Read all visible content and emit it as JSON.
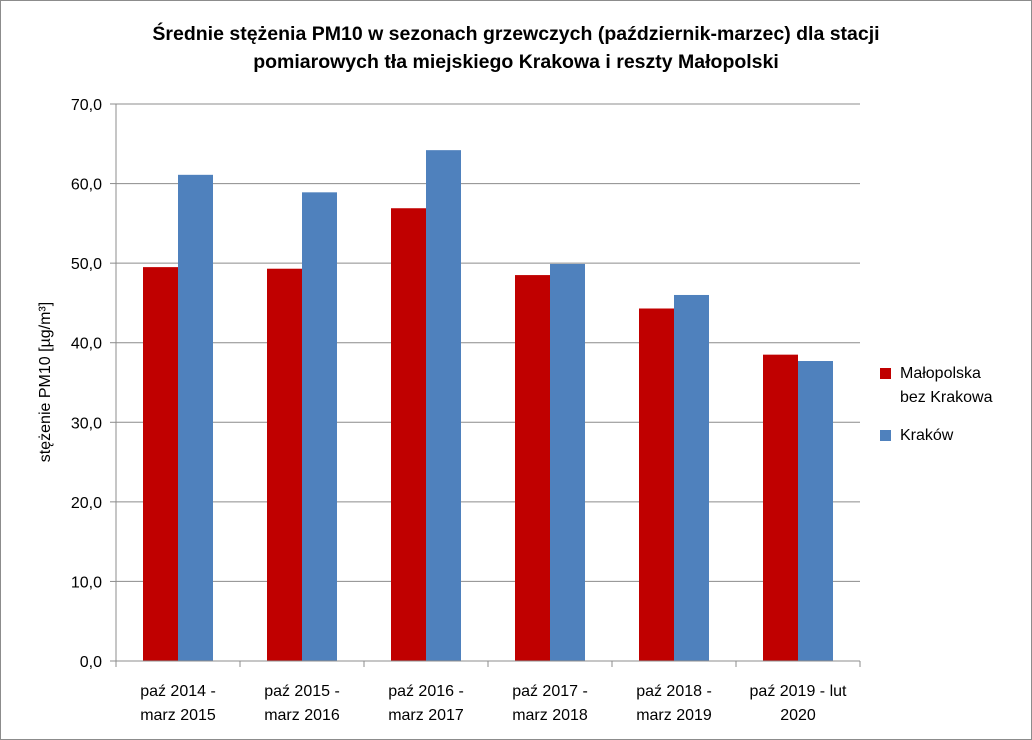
{
  "chart_data": {
    "type": "bar",
    "title_lines": [
      "Średnie stężenia PM10 w sezonach grzewczych (październik-marzec) dla stacji",
      "pomiarowych tła miejskiego Krakowa i reszty Małopolski"
    ],
    "ylabel": "stężenie PM10 [µg/m³]",
    "xlabel": "",
    "ylim": [
      0,
      70
    ],
    "ytick_step": 10,
    "ytick_labels": [
      "0,0",
      "10,0",
      "20,0",
      "30,0",
      "40,0",
      "50,0",
      "60,0",
      "70,0"
    ],
    "grid": true,
    "legend_position": "right",
    "categories": [
      [
        "paź 2014 -",
        "marz 2015"
      ],
      [
        "paź 2015 -",
        "marz 2016"
      ],
      [
        "paź 2016 -",
        "marz 2017"
      ],
      [
        "paź 2017 -",
        "marz 2018"
      ],
      [
        "paź 2018 -",
        "marz 2019"
      ],
      [
        "paź 2019 - lut",
        "2020"
      ]
    ],
    "series": [
      {
        "name_lines": [
          "Małopolska",
          "bez Krakowa"
        ],
        "color": "#C00000",
        "values": [
          49.5,
          49.3,
          56.9,
          48.5,
          44.3,
          38.5
        ]
      },
      {
        "name_lines": [
          "Kraków"
        ],
        "color": "#4F81BD",
        "values": [
          61.1,
          58.9,
          64.2,
          49.9,
          46.0,
          37.7
        ]
      }
    ]
  }
}
